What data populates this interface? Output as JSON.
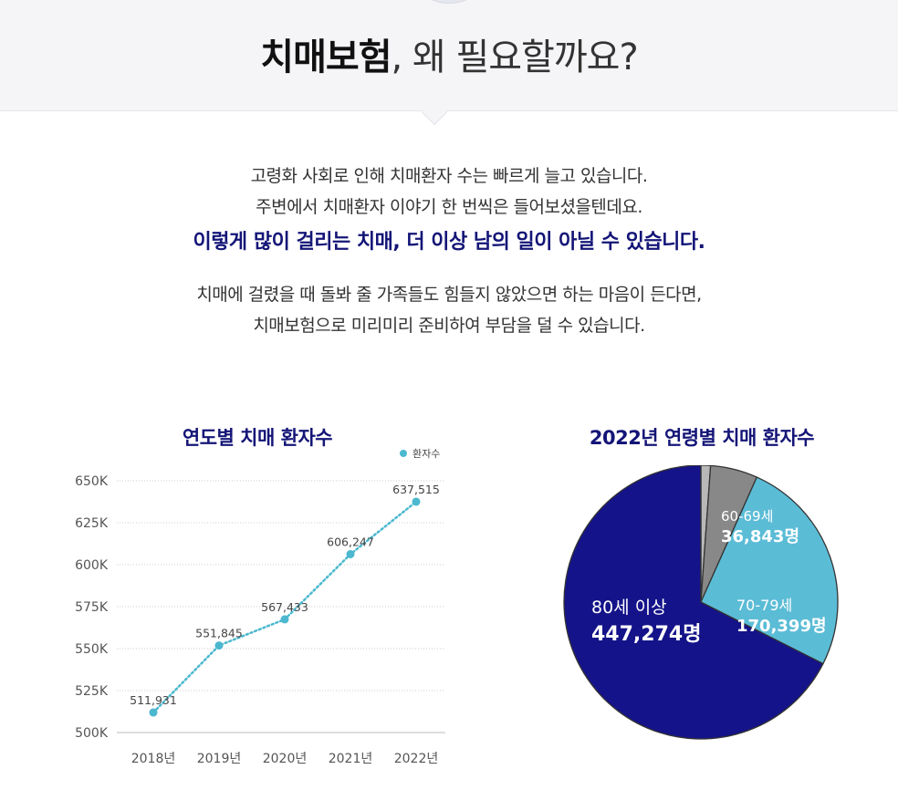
{
  "header": {
    "title_strong": "치매보험",
    "title_rest": ", 왜 필요할까요?"
  },
  "intro": {
    "line1": "고령화 사회로 인해 치매환자 수는 빠르게 늘고 있습니다.",
    "line2": "주변에서 치매환자 이야기 한 번씩은 들어보셨을텐데요.",
    "highlight": "이렇게 많이 걸리는 치매, 더 이상 남의 일이 아닐 수 있습니다.",
    "line3": "치매에 걸렸을 때 돌봐 줄 가족들도 힘들지 않았으면 하는 마음이 든다면,",
    "line4": "치매보험으로 미리미리 준비하여 부담을 덜 수 있습니다."
  },
  "colors": {
    "navy": "#141577",
    "line": "#4bb8cf",
    "gray_light": "#b8b8b8",
    "gray_dark": "#888888",
    "cyan": "#5bbcd6"
  },
  "chart_data": [
    {
      "type": "line",
      "title": "연도별 치매 환자수",
      "categories": [
        "2018년",
        "2019년",
        "2020년",
        "2021년",
        "2022년"
      ],
      "series": [
        {
          "name": "환자수",
          "values": [
            511931,
            551845,
            567433,
            606247,
            637515
          ]
        }
      ],
      "value_labels": [
        "511,931",
        "551,845",
        "567,433",
        "606,247",
        "637,515"
      ],
      "yticks": [
        500000,
        525000,
        550000,
        575000,
        600000,
        625000,
        650000
      ],
      "ytick_labels": [
        "500K",
        "525K",
        "550K",
        "575K",
        "600K",
        "625K",
        "650K"
      ],
      "ylim": [
        500000,
        650000
      ],
      "legend": "top-right",
      "grid": true,
      "line_style": "dotted"
    },
    {
      "type": "pie",
      "title": "2022년 연령별 치매 환자수",
      "slices": [
        {
          "label": "80세 이상",
          "value": 447274,
          "value_label": "447,274명",
          "color": "#141389"
        },
        {
          "label": "70-79세",
          "value": 170399,
          "value_label": "170,399명",
          "color": "#5bbcd6"
        },
        {
          "label": "60-69세",
          "value": 36843,
          "value_label": "36,843명",
          "color": "#888888"
        },
        {
          "label": "",
          "value": 7500,
          "value_label": "",
          "color": "#b8b8b8"
        }
      ]
    }
  ]
}
